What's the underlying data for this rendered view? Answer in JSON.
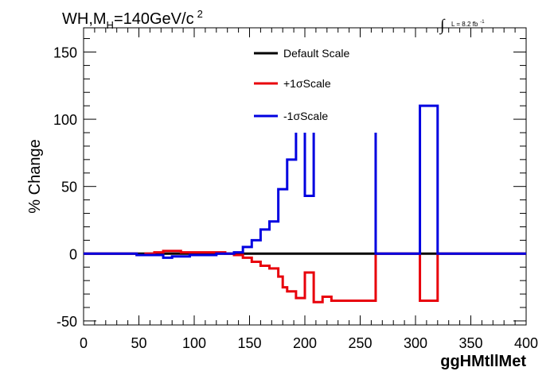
{
  "title": {
    "prefix": "WH,M",
    "subscript": "H",
    "main": "=140GeV/c",
    "superscript": "2"
  },
  "luminosity": {
    "integral_symbol": "∫",
    "text": "L = 8.2 fb",
    "exponent": "-1"
  },
  "colors": {
    "default": "#000000",
    "plus": "#e8000b",
    "minus": "#0000e0",
    "frame": "#000000"
  },
  "chart_data": {
    "type": "line",
    "title": "WH,M_H=140GeV/c^2",
    "xlabel": "ggHMtllMet",
    "ylabel": "% Change",
    "xlim": [
      0,
      400
    ],
    "ylim": [
      -53,
      168
    ],
    "x_ticks": [
      0,
      50,
      100,
      150,
      200,
      250,
      300,
      350,
      400
    ],
    "y_ticks": [
      -50,
      0,
      50,
      100,
      150
    ],
    "grid": false,
    "legend_position": "top-center",
    "series": [
      {
        "name": "Default Scale",
        "color": "#000000",
        "points": [
          [
            0,
            0
          ],
          [
            400,
            0
          ]
        ]
      },
      {
        "name": "+1σScale",
        "color": "#e8000b",
        "points": [
          [
            0,
            0
          ],
          [
            48,
            0
          ],
          [
            48,
            -1
          ],
          [
            56,
            -1
          ],
          [
            56,
            0
          ],
          [
            64,
            0
          ],
          [
            64,
            1
          ],
          [
            72,
            1
          ],
          [
            72,
            2
          ],
          [
            88,
            2
          ],
          [
            88,
            1
          ],
          [
            128,
            1
          ],
          [
            128,
            0
          ],
          [
            136,
            0
          ],
          [
            136,
            -1
          ],
          [
            144,
            -1
          ],
          [
            144,
            -3
          ],
          [
            152,
            -3
          ],
          [
            152,
            -6
          ],
          [
            160,
            -6
          ],
          [
            160,
            -9
          ],
          [
            168,
            -9
          ],
          [
            168,
            -11
          ],
          [
            176,
            -11
          ],
          [
            176,
            -17
          ],
          [
            180,
            -17
          ],
          [
            180,
            -25
          ],
          [
            184,
            -25
          ],
          [
            184,
            -28
          ],
          [
            192,
            -28
          ],
          [
            192,
            -33
          ],
          [
            200,
            -33
          ],
          [
            200,
            -14
          ],
          [
            208,
            -14
          ],
          [
            208,
            -36
          ],
          [
            216,
            -36
          ],
          [
            216,
            -32
          ],
          [
            224,
            -32
          ],
          [
            224,
            -35
          ],
          [
            264,
            -35
          ],
          [
            264,
            0
          ],
          [
            304,
            0
          ],
          [
            304,
            -35
          ],
          [
            320,
            -35
          ],
          [
            320,
            0
          ],
          [
            400,
            0
          ]
        ]
      },
      {
        "name": "-1σScale",
        "color": "#0000e0",
        "points": [
          [
            0,
            0
          ],
          [
            48,
            0
          ],
          [
            48,
            -1
          ],
          [
            72,
            -1
          ],
          [
            72,
            -3
          ],
          [
            80,
            -3
          ],
          [
            80,
            -2
          ],
          [
            96,
            -2
          ],
          [
            96,
            -1
          ],
          [
            120,
            -1
          ],
          [
            120,
            0
          ],
          [
            136,
            0
          ],
          [
            136,
            1
          ],
          [
            144,
            1
          ],
          [
            144,
            5
          ],
          [
            152,
            5
          ],
          [
            152,
            10
          ],
          [
            160,
            10
          ],
          [
            160,
            18
          ],
          [
            168,
            18
          ],
          [
            168,
            24
          ],
          [
            176,
            24
          ],
          [
            176,
            48
          ],
          [
            184,
            48
          ],
          [
            184,
            70
          ],
          [
            192,
            70
          ],
          [
            192,
            90
          ],
          null,
          [
            200,
            90
          ],
          [
            200,
            43
          ],
          [
            208,
            43
          ],
          [
            208,
            90
          ],
          null,
          [
            264,
            90
          ],
          [
            264,
            0
          ],
          [
            304,
            0
          ],
          [
            304,
            110
          ],
          [
            320,
            110
          ],
          [
            320,
            0
          ],
          [
            400,
            0
          ]
        ]
      }
    ]
  }
}
